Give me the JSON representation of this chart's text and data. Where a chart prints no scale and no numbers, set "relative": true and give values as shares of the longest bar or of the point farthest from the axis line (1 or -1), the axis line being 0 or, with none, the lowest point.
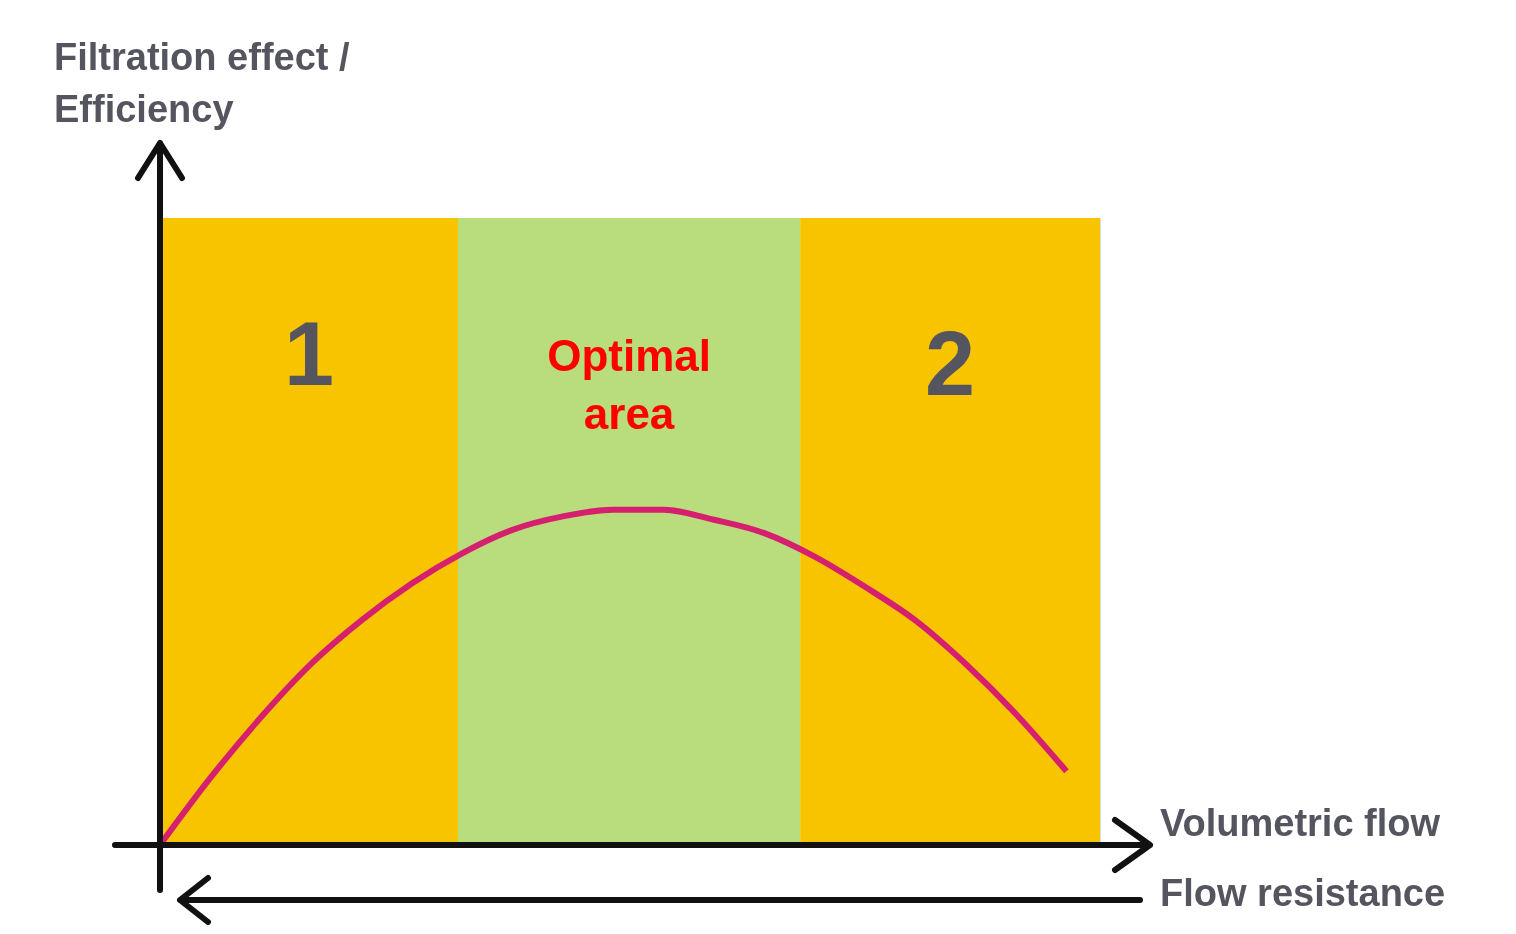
{
  "chart_data": {
    "type": "line",
    "relative": true,
    "xlabel": "Volumetric flow",
    "categories": [
      null,
      null,
      null,
      null,
      null,
      null,
      null,
      null,
      null,
      null,
      null,
      null,
      null,
      null,
      null,
      null,
      null,
      null,
      null
    ],
    "series": [
      {
        "color": "#d6206f",
        "values": [
          0,
          0.2,
          0.38,
          0.54,
          0.67,
          0.78,
          0.87,
          0.94,
          0.98,
          1.0,
          1.0,
          0.97,
          0.93,
          0.86,
          0.77,
          0.67,
          0.54,
          0.39,
          0.22
        ]
      }
    ],
    "annotations": [
      "Filtration effect / Efficiency",
      "1",
      "Optimal area",
      "2",
      "Flow resistance"
    ],
    "marker": "none",
    "line_style": "solid"
  }
}
